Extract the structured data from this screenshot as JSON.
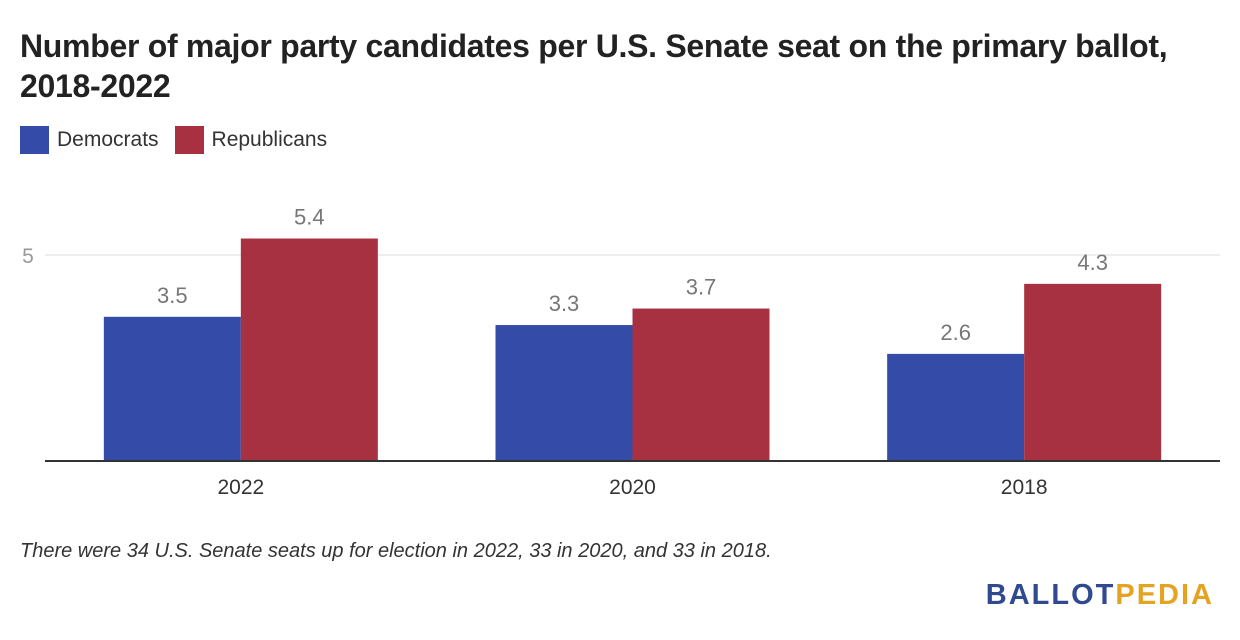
{
  "title": "Number of major party candidates per U.S. Senate seat on the primary ballot, 2018-2022",
  "note": "There were 34 U.S. Senate seats up for election in 2022, 33 in 2020, and 33 in 2018.",
  "logo": {
    "part1": "BALLOT",
    "part2": "PEDIA",
    "colors": {
      "part1": "#2f4a8e",
      "part2": "#e3a323"
    }
  },
  "chart_data": {
    "type": "bar",
    "title": "Number of major party candidates per U.S. Senate seat on the primary ballot, 2018-2022",
    "xlabel": "",
    "ylabel": "",
    "ylim": [
      0,
      5.6
    ],
    "yticks": [
      5
    ],
    "grid": true,
    "legend_position": "top-left",
    "categories": [
      "2022",
      "2020",
      "2018"
    ],
    "series": [
      {
        "name": "Democrats",
        "color": "#344ba8",
        "values": [
          3.5,
          3.3,
          2.6
        ],
        "labels": [
          "3.5",
          "3.3",
          "2.6"
        ]
      },
      {
        "name": "Republicans",
        "color": "#a83141",
        "values": [
          5.4,
          3.7,
          4.3
        ],
        "labels": [
          "5.4",
          "3.7",
          "4.3"
        ]
      }
    ]
  }
}
